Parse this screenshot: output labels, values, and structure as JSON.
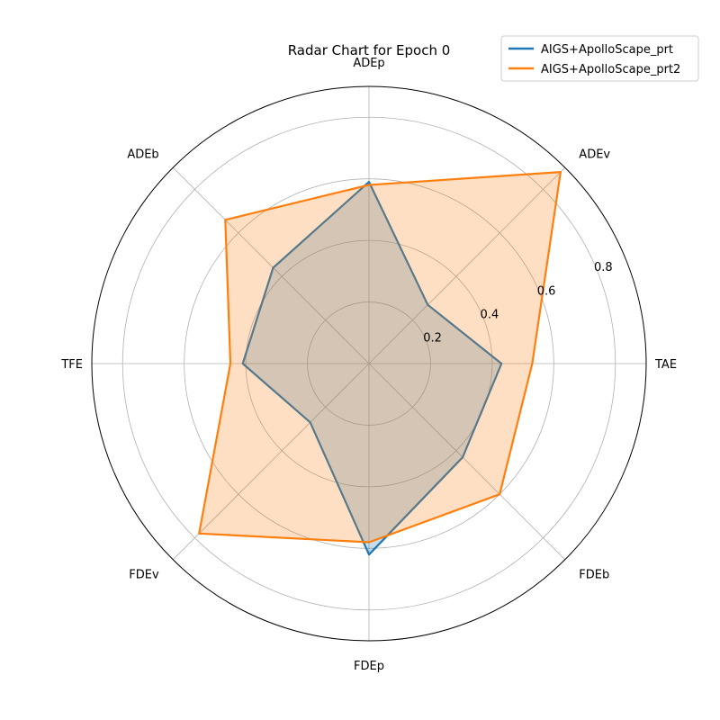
{
  "chart_data": {
    "type": "radar",
    "title": "Radar Chart for Epoch 0",
    "categories": [
      "TAE",
      "ADEv",
      "ADEp",
      "ADEb",
      "TFE",
      "FDEv",
      "FDEp",
      "FDEb"
    ],
    "rticks": [
      0.2,
      0.4,
      0.6,
      0.8
    ],
    "rticks_labels": [
      "0.2",
      "0.4",
      "0.6",
      "0.8"
    ],
    "rlim": [
      0,
      0.9
    ],
    "grid": true,
    "legend_position": "top-right",
    "series": [
      {
        "name": "AIGS+ApolloScape_prt",
        "color": "#1f77b4",
        "values": [
          0.43,
          0.27,
          0.59,
          0.44,
          0.41,
          0.27,
          0.62,
          0.43
        ]
      },
      {
        "name": "AIGS+ApolloScape_prt2",
        "color": "#ff7f0e",
        "values": [
          0.53,
          0.88,
          0.58,
          0.66,
          0.45,
          0.78,
          0.58,
          0.6
        ]
      }
    ]
  }
}
